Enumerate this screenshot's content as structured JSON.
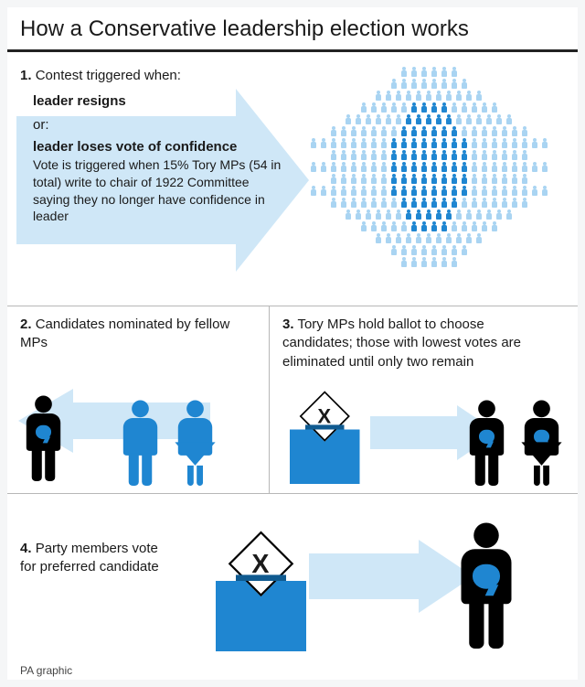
{
  "title": "How a Conservative leadership election works",
  "footer": "PA graphic",
  "colors": {
    "arrow_fill": "#cfe7f7",
    "person_light": "#a9d4f2",
    "person_dark": "#1f86d1",
    "black": "#000000",
    "box": "#1f86d1"
  },
  "section1": {
    "num": "1.",
    "lead": "Contest triggered when:",
    "opt1": "leader resigns",
    "or": "or:",
    "opt2": "leader loses vote of confidence",
    "detail": "Vote is triggered when 15% Tory MPs (54 in total) write to chair of 1922 Committee saying they no longer have confidence in leader",
    "hex_rows": [
      6,
      8,
      11,
      14,
      17,
      20,
      24,
      20,
      24,
      20,
      24,
      20,
      17,
      14,
      11,
      8,
      6
    ],
    "hex_dark_spec": {
      "3": [
        5,
        6,
        7,
        8
      ],
      "4": [
        6,
        7,
        8,
        9,
        10
      ],
      "5": [
        7,
        8,
        9,
        10,
        11,
        12
      ],
      "6": [
        8,
        9,
        10,
        11,
        12,
        13,
        14,
        15
      ],
      "7": [
        6,
        7,
        8,
        9,
        10,
        11,
        12,
        13
      ],
      "8": [
        8,
        9,
        10,
        11,
        12,
        13,
        14,
        15
      ],
      "9": [
        6,
        7,
        8,
        9,
        10,
        11,
        12,
        13
      ],
      "10": [
        8,
        9,
        10,
        11,
        12,
        13,
        14,
        15
      ],
      "11": [
        7,
        8,
        9,
        10,
        11,
        12
      ],
      "12": [
        6,
        7,
        8,
        9,
        10
      ],
      "13": [
        5,
        6,
        7,
        8
      ]
    }
  },
  "section2": {
    "num": "2.",
    "text": "Candidates nominated by fellow MPs"
  },
  "section3": {
    "num": "3.",
    "text": "Tory MPs hold ballot to choose candidates; those with lowest votes are eliminated until only two remain"
  },
  "section4": {
    "num": "4.",
    "text": "Party members vote for preferred candidate"
  },
  "ballot_mark": "X"
}
